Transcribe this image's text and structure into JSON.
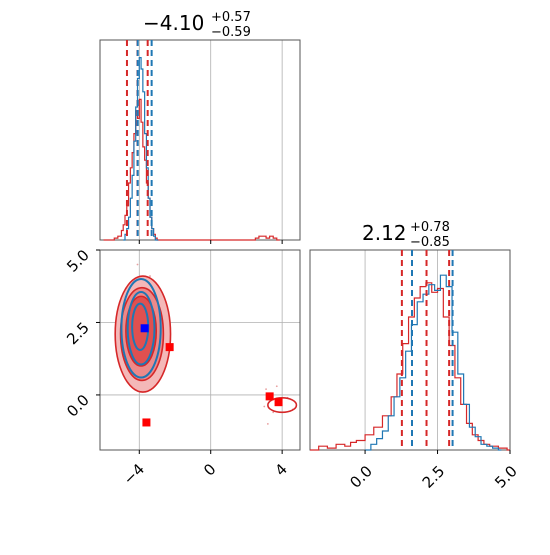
{
  "colors": {
    "red": "#d62728",
    "blue": "#1f77b4",
    "marker_red": "#ff0000",
    "marker_blue": "#0000ff",
    "grid": "#b0b0b0",
    "fill_dark": "#e05050",
    "fill_light": "#f4b8b8"
  },
  "chart_data": [
    {
      "type": "histogram",
      "panel": "top-left marginal",
      "title": {
        "median": "−4.10",
        "plus": "+0.57",
        "minus": "−0.59"
      },
      "xlim": [
        -6.2,
        5.0
      ],
      "grid": true,
      "red_quantile_lines": [
        -4.69,
        -4.1,
        -3.53
      ],
      "blue_quantile_lines": [
        -4.2,
        -3.42
      ],
      "series": [
        {
          "color": "red",
          "bins": [
            [
              -6.0,
              0
            ],
            [
              -5.8,
              0
            ],
            [
              -5.6,
              0
            ],
            [
              -5.4,
              0.01
            ],
            [
              -5.2,
              0.02
            ],
            [
              -5.0,
              0.05
            ],
            [
              -4.9,
              0.08
            ],
            [
              -4.8,
              0.13
            ],
            [
              -4.7,
              0.18
            ],
            [
              -4.6,
              0.3
            ],
            [
              -4.5,
              0.38
            ],
            [
              -4.4,
              0.46
            ],
            [
              -4.3,
              0.56
            ],
            [
              -4.2,
              0.68
            ],
            [
              -4.1,
              0.64
            ],
            [
              -4.0,
              0.74
            ],
            [
              -3.9,
              0.62
            ],
            [
              -3.8,
              0.49
            ],
            [
              -3.7,
              0.42
            ],
            [
              -3.6,
              0.3
            ],
            [
              -3.5,
              0.22
            ],
            [
              -3.4,
              0.12
            ],
            [
              -3.3,
              0.06
            ],
            [
              -3.2,
              0.03
            ],
            [
              -3.1,
              0.01
            ],
            [
              -3.0,
              0
            ],
            [
              2.5,
              0.01
            ],
            [
              2.7,
              0.02
            ],
            [
              2.9,
              0.02
            ],
            [
              3.1,
              0.01
            ],
            [
              3.3,
              0.02
            ],
            [
              3.5,
              0.01
            ],
            [
              3.7,
              0
            ]
          ]
        },
        {
          "color": "blue",
          "bins": [
            [
              -4.9,
              0
            ],
            [
              -4.8,
              0.03
            ],
            [
              -4.7,
              0.06
            ],
            [
              -4.6,
              0.12
            ],
            [
              -4.5,
              0.22
            ],
            [
              -4.4,
              0.34
            ],
            [
              -4.3,
              0.52
            ],
            [
              -4.2,
              0.7
            ],
            [
              -4.1,
              0.85
            ],
            [
              -4.0,
              0.96
            ],
            [
              -3.9,
              0.9
            ],
            [
              -3.8,
              0.78
            ],
            [
              -3.7,
              0.56
            ],
            [
              -3.6,
              0.38
            ],
            [
              -3.5,
              0.22
            ],
            [
              -3.4,
              0.12
            ],
            [
              -3.3,
              0.06
            ],
            [
              -3.2,
              0.02
            ],
            [
              -3.1,
              0
            ]
          ]
        }
      ]
    },
    {
      "type": "scatter-contour",
      "panel": "bottom-left joint",
      "xlim": [
        -6.2,
        5.0
      ],
      "ylim": [
        -1.9,
        5.0
      ],
      "xticks": [
        "−4",
        "0",
        "4"
      ],
      "xtick_values": [
        -4,
        0,
        4
      ],
      "yticks": [
        "0.0",
        "2.5",
        "5.0"
      ],
      "ytick_values": [
        0.0,
        2.5,
        5.0
      ],
      "grid": true,
      "red_contours": [
        {
          "cx": -3.8,
          "cy": 2.1,
          "rx": 1.55,
          "ry": 2.0
        },
        {
          "cx": -3.85,
          "cy": 2.1,
          "rx": 1.2,
          "ry": 1.6
        },
        {
          "cx": -3.9,
          "cy": 2.2,
          "rx": 0.85,
          "ry": 1.2
        },
        {
          "cx": 4.0,
          "cy": -0.35,
          "rx": 0.8,
          "ry": 0.25
        }
      ],
      "blue_contours": [
        {
          "cx": -3.9,
          "cy": 2.3,
          "rx": 1.1,
          "ry": 1.7
        },
        {
          "cx": -3.9,
          "cy": 2.3,
          "rx": 0.75,
          "ry": 1.25
        },
        {
          "cx": -3.95,
          "cy": 2.35,
          "rx": 0.45,
          "ry": 0.8
        }
      ],
      "red_markers": [
        {
          "x": -2.3,
          "y": 1.65
        },
        {
          "x": -3.6,
          "y": -0.95
        },
        {
          "x": 3.3,
          "y": -0.05
        },
        {
          "x": 3.8,
          "y": -0.25
        }
      ],
      "blue_markers": [
        {
          "x": -3.7,
          "y": 2.3
        }
      ]
    },
    {
      "type": "histogram",
      "panel": "bottom-right marginal",
      "title": {
        "median": "2.12",
        "plus": "+0.78",
        "minus": "−0.85"
      },
      "xlim": [
        -1.9,
        5.0
      ],
      "xticks": [
        "0.0",
        "2.5",
        "5.0"
      ],
      "xtick_values": [
        0.0,
        2.5,
        5.0
      ],
      "grid": true,
      "red_quantile_lines": [
        1.27,
        2.12,
        2.9
      ],
      "blue_quantile_lines": [
        1.55,
        2.95
      ],
      "series": [
        {
          "color": "red",
          "bins": [
            [
              -1.9,
              0
            ],
            [
              -1.6,
              0.02
            ],
            [
              -1.3,
              0.01
            ],
            [
              -1.0,
              0.03
            ],
            [
              -0.7,
              0.02
            ],
            [
              -0.5,
              0.04
            ],
            [
              -0.3,
              0.05
            ],
            [
              0.0,
              0.08
            ],
            [
              0.3,
              0.12
            ],
            [
              0.6,
              0.18
            ],
            [
              0.9,
              0.28
            ],
            [
              1.1,
              0.4
            ],
            [
              1.3,
              0.56
            ],
            [
              1.5,
              0.7
            ],
            [
              1.7,
              0.8
            ],
            [
              1.9,
              0.86
            ],
            [
              2.1,
              0.88
            ],
            [
              2.3,
              0.83
            ],
            [
              2.5,
              0.85
            ],
            [
              2.7,
              0.7
            ],
            [
              2.9,
              0.55
            ],
            [
              3.1,
              0.38
            ],
            [
              3.3,
              0.24
            ],
            [
              3.5,
              0.14
            ],
            [
              3.7,
              0.08
            ],
            [
              3.9,
              0.05
            ],
            [
              4.1,
              0.03
            ],
            [
              4.3,
              0.02
            ],
            [
              4.6,
              0.01
            ],
            [
              4.9,
              0
            ]
          ]
        },
        {
          "color": "blue",
          "bins": [
            [
              0.0,
              0
            ],
            [
              0.2,
              0.03
            ],
            [
              0.4,
              0.06
            ],
            [
              0.6,
              0.1
            ],
            [
              0.8,
              0.18
            ],
            [
              1.0,
              0.28
            ],
            [
              1.2,
              0.38
            ],
            [
              1.4,
              0.52
            ],
            [
              1.6,
              0.66
            ],
            [
              1.8,
              0.78
            ],
            [
              2.0,
              0.82
            ],
            [
              2.2,
              0.87
            ],
            [
              2.4,
              0.84
            ],
            [
              2.6,
              0.92
            ],
            [
              2.8,
              0.86
            ],
            [
              3.0,
              0.62
            ],
            [
              3.2,
              0.4
            ],
            [
              3.4,
              0.24
            ],
            [
              3.6,
              0.12
            ],
            [
              3.8,
              0.07
            ],
            [
              4.0,
              0.03
            ],
            [
              4.2,
              0.02
            ],
            [
              4.4,
              0.01
            ],
            [
              4.6,
              0
            ]
          ]
        }
      ]
    }
  ]
}
